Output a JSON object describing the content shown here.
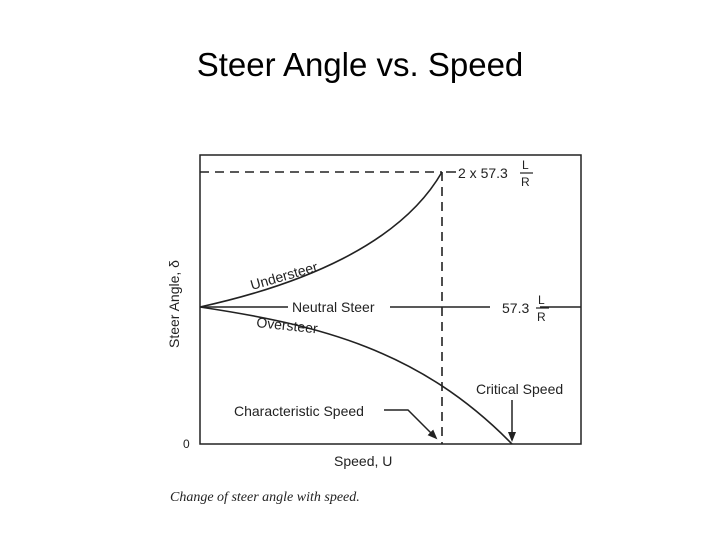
{
  "slide": {
    "title": "Steer Angle vs. Speed"
  },
  "figure": {
    "y_axis_label": "Steer Angle, δ",
    "x_axis_label": "Speed, U",
    "origin_label": "0",
    "curves": {
      "understeer": "Understeer",
      "neutral": "Neutral Steer",
      "oversteer": "Oversteer"
    },
    "levels": {
      "upper": {
        "prefix": "2 x 57.3",
        "numerator": "L",
        "denominator": "R"
      },
      "neutral": {
        "prefix": "57.3",
        "numerator": "L",
        "denominator": "R"
      }
    },
    "annotations": {
      "characteristic_speed": "Characteristic Speed",
      "critical_speed": "Critical Speed"
    },
    "caption": "Change of steer angle with speed."
  },
  "colors": {
    "ink": "#222222",
    "background": "#ffffff"
  }
}
